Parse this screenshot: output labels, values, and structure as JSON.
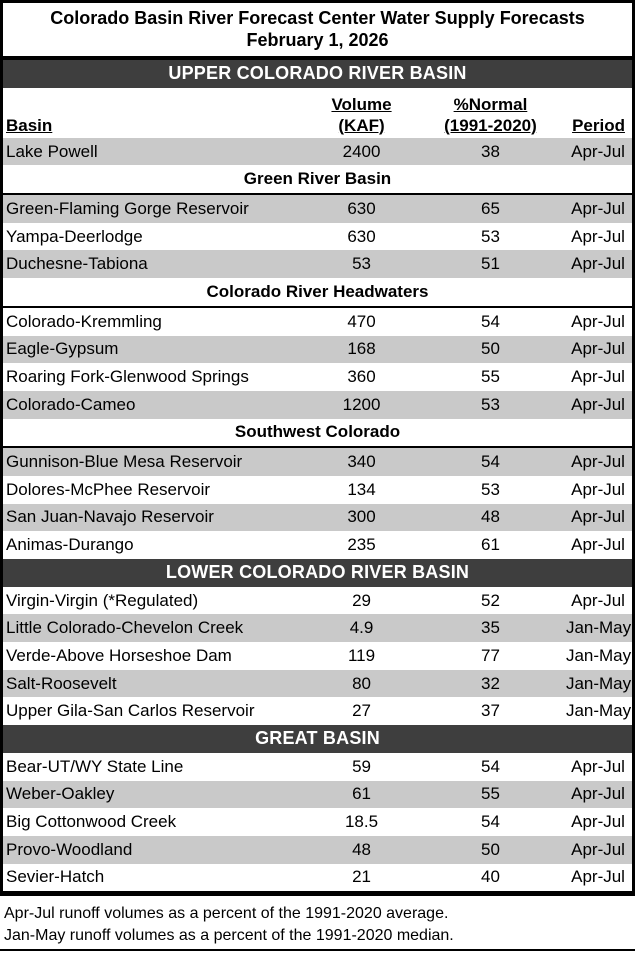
{
  "title": {
    "line1": "Colorado Basin River Forecast Center Water Supply Forecasts",
    "line2": "February 1, 2026"
  },
  "columns": {
    "basin": "Basin",
    "volume_line1": "Volume",
    "volume_line2": "(KAF)",
    "normal_line1": "%Normal",
    "normal_line2": "(1991-2020)",
    "period": "Period"
  },
  "colors": {
    "section_band_bg": "#3e3e3e",
    "section_band_text": "#ffffff",
    "shaded_row_bg": "#c9c9c9",
    "border": "#000000"
  },
  "sections": [
    {
      "name": "UPPER COLORADO RIVER BASIN",
      "groups": [
        {
          "subheader": null,
          "rows": [
            {
              "basin": "Lake Powell",
              "volume": "2400",
              "normal": "38",
              "period": "Apr-Jul",
              "shaded": true
            }
          ]
        },
        {
          "subheader": "Green River Basin",
          "rows": [
            {
              "basin": "Green-Flaming Gorge Reservoir",
              "volume": "630",
              "normal": "65",
              "period": "Apr-Jul",
              "shaded": true
            },
            {
              "basin": "Yampa-Deerlodge",
              "volume": "630",
              "normal": "53",
              "period": "Apr-Jul",
              "shaded": false
            },
            {
              "basin": "Duchesne-Tabiona",
              "volume": "53",
              "normal": "51",
              "period": "Apr-Jul",
              "shaded": true
            }
          ]
        },
        {
          "subheader": "Colorado River Headwaters",
          "rows": [
            {
              "basin": "Colorado-Kremmling",
              "volume": "470",
              "normal": "54",
              "period": "Apr-Jul",
              "shaded": false
            },
            {
              "basin": "Eagle-Gypsum",
              "volume": "168",
              "normal": "50",
              "period": "Apr-Jul",
              "shaded": true
            },
            {
              "basin": "Roaring Fork-Glenwood Springs",
              "volume": "360",
              "normal": "55",
              "period": "Apr-Jul",
              "shaded": false
            },
            {
              "basin": "Colorado-Cameo",
              "volume": "1200",
              "normal": "53",
              "period": "Apr-Jul",
              "shaded": true
            }
          ]
        },
        {
          "subheader": "Southwest Colorado",
          "rows": [
            {
              "basin": "Gunnison-Blue Mesa Reservoir",
              "volume": "340",
              "normal": "54",
              "period": "Apr-Jul",
              "shaded": true
            },
            {
              "basin": "Dolores-McPhee Reservoir",
              "volume": "134",
              "normal": "53",
              "period": "Apr-Jul",
              "shaded": false
            },
            {
              "basin": "San Juan-Navajo Reservoir",
              "volume": "300",
              "normal": "48",
              "period": "Apr-Jul",
              "shaded": true
            },
            {
              "basin": "Animas-Durango",
              "volume": "235",
              "normal": "61",
              "period": "Apr-Jul",
              "shaded": false
            }
          ]
        }
      ]
    },
    {
      "name": "LOWER COLORADO RIVER BASIN",
      "groups": [
        {
          "subheader": null,
          "rows": [
            {
              "basin": "Virgin-Virgin (*Regulated)",
              "volume": "29",
              "normal": "52",
              "period": "Apr-Jul",
              "shaded": false
            },
            {
              "basin": "Little Colorado-Chevelon Creek",
              "volume": "4.9",
              "normal": "35",
              "period": "Jan-May",
              "shaded": true
            },
            {
              "basin": "Verde-Above Horseshoe Dam",
              "volume": "119",
              "normal": "77",
              "period": "Jan-May",
              "shaded": false
            },
            {
              "basin": "Salt-Roosevelt",
              "volume": "80",
              "normal": "32",
              "period": "Jan-May",
              "shaded": true
            },
            {
              "basin": "Upper Gila-San Carlos Reservoir",
              "volume": "27",
              "normal": "37",
              "period": "Jan-May",
              "shaded": false
            }
          ]
        }
      ]
    },
    {
      "name": "GREAT BASIN",
      "groups": [
        {
          "subheader": null,
          "rows": [
            {
              "basin": "Bear-UT/WY State Line",
              "volume": "59",
              "normal": "54",
              "period": "Apr-Jul",
              "shaded": false
            },
            {
              "basin": "Weber-Oakley",
              "volume": "61",
              "normal": "55",
              "period": "Apr-Jul",
              "shaded": true
            },
            {
              "basin": "Big Cottonwood Creek",
              "volume": "18.5",
              "normal": "54",
              "period": "Apr-Jul",
              "shaded": false
            },
            {
              "basin": "Provo-Woodland",
              "volume": "48",
              "normal": "50",
              "period": "Apr-Jul",
              "shaded": true
            },
            {
              "basin": "Sevier-Hatch",
              "volume": "21",
              "normal": "40",
              "period": "Apr-Jul",
              "shaded": false
            }
          ]
        }
      ]
    }
  ],
  "footnotes": [
    "Apr-Jul runoff volumes as a percent of the 1991-2020 average.",
    "Jan-May runoff volumes as a percent of the 1991-2020 median."
  ]
}
